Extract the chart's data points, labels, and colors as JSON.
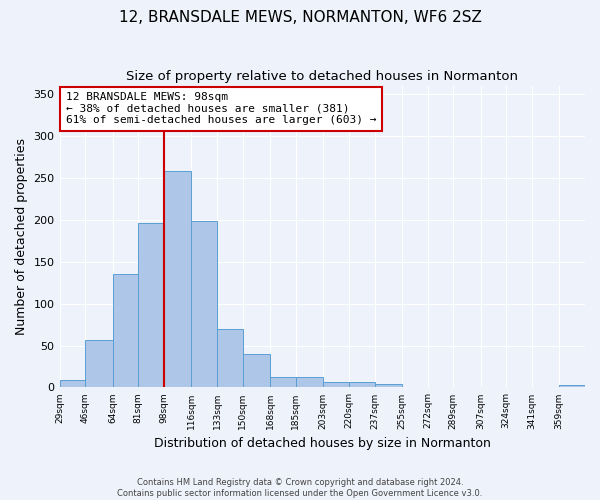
{
  "title": "12, BRANSDALE MEWS, NORMANTON, WF6 2SZ",
  "subtitle": "Size of property relative to detached houses in Normanton",
  "xlabel": "Distribution of detached houses by size in Normanton",
  "ylabel": "Number of detached properties",
  "footer_line1": "Contains HM Land Registry data © Crown copyright and database right 2024.",
  "footer_line2": "Contains public sector information licensed under the Open Government Licence v3.0.",
  "bin_edges": [
    29,
    46,
    64,
    81,
    98,
    116,
    133,
    150,
    168,
    185,
    203,
    220,
    237,
    255,
    272,
    289,
    307,
    324,
    341,
    359,
    376
  ],
  "bar_heights": [
    9,
    57,
    135,
    196,
    258,
    199,
    70,
    40,
    12,
    13,
    6,
    6,
    4,
    0,
    0,
    0,
    0,
    0,
    0,
    3
  ],
  "bar_color": "#aec6e8",
  "bar_edge_color": "#5a9fd4",
  "property_size": 98,
  "vline_color": "#cc0000",
  "annotation_line1": "12 BRANSDALE MEWS: 98sqm",
  "annotation_line2": "← 38% of detached houses are smaller (381)",
  "annotation_line3": "61% of semi-detached houses are larger (603) →",
  "annotation_box_color": "#ffffff",
  "annotation_box_edge": "#cc0000",
  "ylim": [
    0,
    360
  ],
  "yticks": [
    0,
    50,
    100,
    150,
    200,
    250,
    300,
    350
  ],
  "background_color": "#eef2fa",
  "grid_color": "#ffffff",
  "title_fontsize": 11,
  "subtitle_fontsize": 9.5,
  "xlabel_fontsize": 9,
  "ylabel_fontsize": 9,
  "annotation_fontsize": 8
}
